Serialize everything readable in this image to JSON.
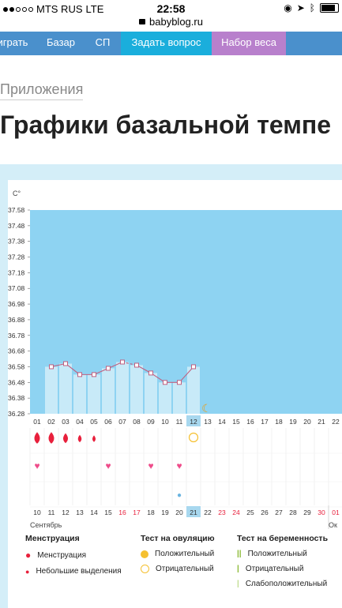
{
  "status": {
    "carrier": "MTS RUS",
    "network": "LTE",
    "time": "22:58"
  },
  "url": "babyblog.ru",
  "nav": {
    "items": [
      "играть",
      "Базар",
      "СП",
      "Задать вопрос",
      "Набор веса"
    ],
    "colors": [
      "#4a90cc",
      "#4a90cc",
      "#4a90cc",
      "#1aaedc",
      "#b880cc"
    ]
  },
  "breadcrumb": "Приложения",
  "page_title": "Графики базальной темпе",
  "chart_data": {
    "type": "line",
    "yunit": "C°",
    "yticks": [
      "37.58",
      "37.48",
      "37.38",
      "37.28",
      "37.18",
      "37.08",
      "36.98",
      "36.88",
      "36.78",
      "36.68",
      "36.58",
      "36.48",
      "36.38",
      "36.28"
    ],
    "ylim": [
      36.28,
      37.58
    ],
    "x_top": [
      "01",
      "02",
      "03",
      "04",
      "05",
      "06",
      "07",
      "08",
      "09",
      "10",
      "11",
      "12",
      "13",
      "14",
      "15",
      "16",
      "17",
      "18",
      "19",
      "20",
      "21",
      "22"
    ],
    "values": [
      null,
      36.58,
      36.6,
      36.53,
      36.53,
      36.57,
      36.61,
      36.59,
      36.54,
      36.48,
      36.48,
      36.58,
      null
    ],
    "x_bottom": [
      "10",
      "11",
      "12",
      "13",
      "14",
      "15",
      "16",
      "17",
      "18",
      "19",
      "20",
      "21",
      "22",
      "23",
      "24",
      "25",
      "26",
      "27",
      "28",
      "29",
      "30",
      "01"
    ],
    "month_left": "Сентябрь",
    "month_right": "Ок",
    "highlight_top": "12",
    "highlight_bottom": "21"
  },
  "legend": {
    "menstr": {
      "title": "Менструация",
      "items": [
        "Менструация",
        "Небольшие выделения"
      ]
    },
    "ovul": {
      "title": "Тест на овуляцию",
      "items": [
        "Положительный",
        "Отрицательный"
      ]
    },
    "preg": {
      "title": "Тест на беременность",
      "items": [
        "Положительный",
        "Отрицательный",
        "Слабоположительный"
      ]
    }
  },
  "colors": {
    "chart_bg": "#8ed3f2",
    "bar": "#c8eaf8",
    "line": "#c06080",
    "red": "#e8203c",
    "pink": "#ee4c8a",
    "yellow": "#f5c030"
  }
}
